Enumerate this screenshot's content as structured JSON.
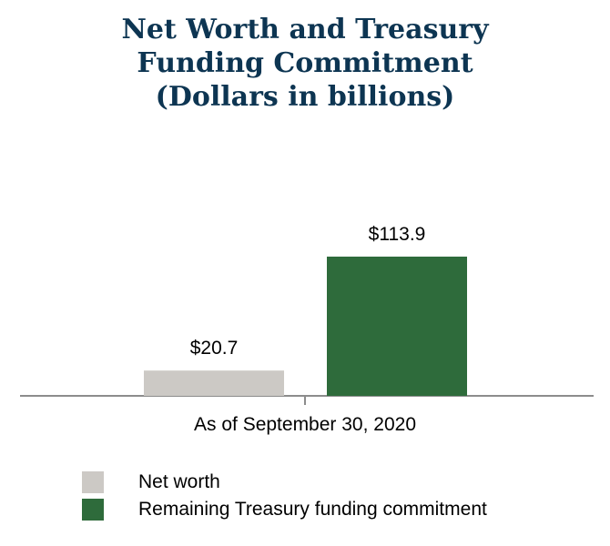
{
  "chart_data": {
    "type": "bar",
    "title_lines": [
      "Net Worth and Treasury",
      "Funding Commitment",
      "(Dollars in billions)"
    ],
    "categories": [
      "As of September 30, 2020"
    ],
    "series": [
      {
        "name": "Net worth",
        "values": [
          20.7
        ],
        "value_label": "$20.7",
        "color": "#ccc9c5"
      },
      {
        "name": "Remaining Treasury funding commitment",
        "values": [
          113.9
        ],
        "value_label": "$113.9",
        "color": "#2e6b3b"
      }
    ],
    "ylim": [
      0,
      113.9
    ],
    "grid": false,
    "legend_position": "bottom-left"
  }
}
